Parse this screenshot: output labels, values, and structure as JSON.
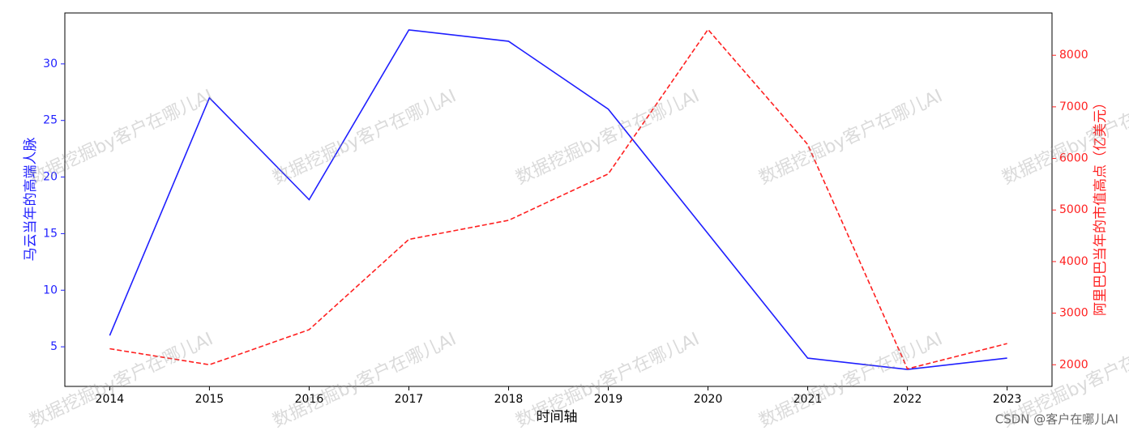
{
  "chart_data": {
    "type": "line",
    "x": [
      2014,
      2015,
      2016,
      2017,
      2018,
      2019,
      2020,
      2021,
      2022,
      2023
    ],
    "xlim": [
      2013.55,
      2023.45
    ],
    "xticks": [
      2014,
      2015,
      2016,
      2017,
      2018,
      2019,
      2020,
      2021,
      2022,
      2023
    ],
    "ylim": [
      1.5,
      34.5
    ],
    "yticks": [
      5,
      10,
      15,
      20,
      25,
      30
    ],
    "y2lim": [
      1580,
      8820
    ],
    "y2ticks": [
      2000,
      3000,
      4000,
      5000,
      6000,
      7000,
      8000
    ],
    "xlabel": "时间轴",
    "ylabel": "马云当年的高端人脉",
    "y2label": "阿里巴巴当年的市值高点（亿美元）",
    "series": [
      {
        "color": "#1f1fff",
        "dash": "solid",
        "values": [
          6,
          27,
          18,
          33,
          32,
          26,
          15,
          4,
          3,
          4
        ]
      },
      {
        "color": "#ff2020",
        "dash": "dashed",
        "axis": "y2",
        "values": [
          2310,
          2000,
          2680,
          4430,
          4800,
          5700,
          8500,
          6270,
          1920,
          2410
        ]
      }
    ],
    "watermark": "数据挖掘by客户在哪儿AI",
    "credit": "CSDN @客户在哪儿AI"
  }
}
